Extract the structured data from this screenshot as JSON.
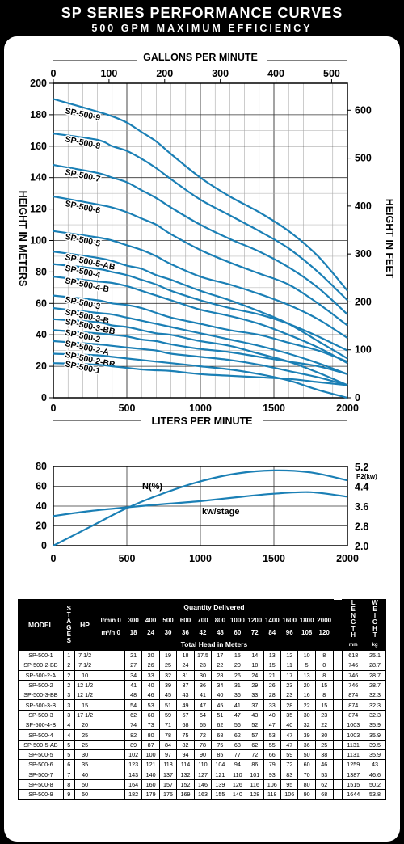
{
  "header": {
    "title": "SP SERIES PERFORMANCE CURVES",
    "subtitle": "500 GPM MAXIMUM EFFICIENCY"
  },
  "chart_data": [
    {
      "type": "line",
      "x_top_label": "GALLONS PER MINUTE",
      "x_top_ticks": [
        "0",
        "100",
        "200",
        "300",
        "400",
        "500"
      ],
      "x_bottom_label": "LITERS PER MINUTE",
      "x_ticks": [
        "0",
        "500",
        "1000",
        "1500",
        "2000"
      ],
      "xlim": [
        0,
        2000
      ],
      "y_left_label": "HEIGHT IN METERS",
      "y_left_ticks": [
        "0",
        "20",
        "40",
        "60",
        "80",
        "100",
        "120",
        "140",
        "160",
        "180",
        "200"
      ],
      "ylim": [
        0,
        200
      ],
      "y_right_label": "HEIGHT IN FEET",
      "y_right_ticks": [
        "0",
        "100",
        "200",
        "300",
        "400",
        "500",
        "600"
      ],
      "grid": true,
      "line_color": "#1a7fb5",
      "series": [
        {
          "name": "SP-500-9",
          "x": [
            0,
            300,
            400,
            500,
            600,
            700,
            800,
            1000,
            1200,
            1400,
            1600,
            1800,
            2000
          ],
          "y": [
            190,
            182,
            179,
            175,
            169,
            163,
            155,
            140,
            128,
            118,
            106,
            90,
            68
          ]
        },
        {
          "name": "SP-500-8",
          "x": [
            0,
            300,
            400,
            500,
            600,
            700,
            800,
            1000,
            1200,
            1400,
            1600,
            1800,
            2000
          ],
          "y": [
            168,
            164,
            160,
            157,
            152,
            146,
            139,
            126,
            116,
            106,
            95,
            80,
            62
          ]
        },
        {
          "name": "SP-500-7",
          "x": [
            0,
            300,
            400,
            500,
            600,
            700,
            800,
            1000,
            1200,
            1400,
            1600,
            1800,
            2000
          ],
          "y": [
            148,
            143,
            140,
            137,
            132,
            127,
            121,
            110,
            101,
            93,
            83,
            70,
            53
          ]
        },
        {
          "name": "SP-500-6",
          "x": [
            0,
            300,
            400,
            500,
            600,
            700,
            800,
            1000,
            1200,
            1400,
            1600,
            1800,
            2000
          ],
          "y": [
            128,
            123,
            121,
            118,
            114,
            110,
            104,
            94,
            86,
            79,
            72,
            60,
            46
          ]
        },
        {
          "name": "SP-500-5",
          "x": [
            0,
            300,
            400,
            500,
            600,
            700,
            800,
            1000,
            1200,
            1400,
            1600,
            1800,
            2000
          ],
          "y": [
            106,
            102,
            100,
            97,
            94,
            90,
            85,
            77,
            72,
            66,
            59,
            50,
            38
          ]
        },
        {
          "name": "SP-500-5-AB",
          "x": [
            0,
            300,
            400,
            500,
            600,
            700,
            800,
            1000,
            1200,
            1400,
            1600,
            1800,
            2000
          ],
          "y": [
            93,
            89,
            87,
            84,
            82,
            78,
            75,
            68,
            62,
            55,
            47,
            36,
            25
          ]
        },
        {
          "name": "SP-500-4",
          "x": [
            0,
            300,
            400,
            500,
            600,
            700,
            800,
            1000,
            1200,
            1400,
            1600,
            1800,
            2000
          ],
          "y": [
            85,
            82,
            80,
            78,
            75,
            72,
            68,
            62,
            57,
            53,
            47,
            39,
            30
          ]
        },
        {
          "name": "SP-500-4-B",
          "x": [
            0,
            300,
            400,
            500,
            600,
            700,
            800,
            1000,
            1200,
            1400,
            1600,
            1800,
            2000
          ],
          "y": [
            77,
            74,
            73,
            71,
            68,
            65,
            62,
            56,
            52,
            47,
            40,
            32,
            22
          ]
        },
        {
          "name": "SP-500-3",
          "x": [
            0,
            300,
            400,
            500,
            600,
            700,
            800,
            1000,
            1200,
            1400,
            1600,
            1800,
            2000
          ],
          "y": [
            65,
            62,
            60,
            59,
            57,
            54,
            51,
            47,
            43,
            40,
            35,
            30,
            23
          ]
        },
        {
          "name": "SP-500-3-B",
          "x": [
            0,
            300,
            400,
            500,
            600,
            700,
            800,
            1000,
            1200,
            1400,
            1600,
            1800,
            2000
          ],
          "y": [
            57,
            54,
            53,
            51,
            49,
            47,
            45,
            41,
            37,
            33,
            28,
            22,
            15
          ]
        },
        {
          "name": "SP-500-3-BB",
          "x": [
            0,
            300,
            400,
            500,
            600,
            700,
            800,
            1000,
            1200,
            1400,
            1600,
            1800,
            2000
          ],
          "y": [
            50,
            48,
            46,
            45,
            43,
            41,
            40,
            36,
            33,
            28,
            23,
            16,
            8
          ]
        },
        {
          "name": "SP-500-2",
          "x": [
            0,
            300,
            400,
            500,
            600,
            700,
            800,
            1000,
            1200,
            1400,
            1600,
            1800,
            2000
          ],
          "y": [
            43,
            41,
            40,
            39,
            37,
            36,
            34,
            31,
            29,
            26,
            23,
            20,
            15
          ]
        },
        {
          "name": "SP-500-2-A",
          "x": [
            0,
            300,
            400,
            500,
            600,
            700,
            800,
            1000,
            1200,
            1400,
            1600,
            1800,
            2000
          ],
          "y": [
            36,
            34,
            33,
            32,
            31,
            30,
            28,
            26,
            24,
            21,
            17,
            13,
            8
          ]
        },
        {
          "name": "SP-500-2-BB",
          "x": [
            0,
            300,
            400,
            500,
            600,
            700,
            800,
            1000,
            1200,
            1400,
            1600,
            1800,
            2000
          ],
          "y": [
            28,
            27,
            26,
            25,
            24,
            23,
            22,
            20,
            18,
            15,
            11,
            5,
            0
          ]
        },
        {
          "name": "SP-500-1",
          "x": [
            0,
            300,
            400,
            500,
            600,
            700,
            800,
            1000,
            1200,
            1400,
            1600,
            1800,
            2000
          ],
          "y": [
            22,
            21,
            20,
            19,
            18,
            17.5,
            17,
            15,
            14,
            13,
            12,
            10,
            8
          ]
        }
      ]
    },
    {
      "type": "line",
      "x_ticks": [
        "0",
        "500",
        "1000",
        "1500",
        "2000"
      ],
      "xlim": [
        0,
        2000
      ],
      "y_left_ticks": [
        "0",
        "20",
        "40",
        "60",
        "80"
      ],
      "ylim": [
        0,
        80
      ],
      "y_right_unit": "P2(kw)",
      "y_right_ticks": [
        "2.0",
        "2.8",
        "3.6",
        "4.4",
        "5.2"
      ],
      "y_right_lim": [
        2.0,
        5.2
      ],
      "grid": true,
      "series": [
        {
          "name": "N(%)",
          "axis": "left",
          "x": [
            0,
            250,
            500,
            750,
            1000,
            1250,
            1500,
            1750,
            2000
          ],
          "y": [
            0,
            19,
            38,
            53,
            65,
            73,
            76,
            74,
            66
          ]
        },
        {
          "name": "kw/stage",
          "axis": "right",
          "x": [
            0,
            250,
            500,
            750,
            1000,
            1250,
            1500,
            1750,
            2000
          ],
          "y": [
            3.2,
            3.4,
            3.55,
            3.68,
            3.8,
            3.96,
            4.1,
            4.16,
            3.98
          ]
        }
      ]
    }
  ],
  "table": {
    "headers": {
      "model": "MODEL",
      "stages": [
        "S",
        "T",
        "A",
        "G",
        "E",
        "S"
      ],
      "hp": "HP",
      "quantity": "Quantity Delivered",
      "lmin_unit": "l/min",
      "lmin_values": [
        "0",
        "300",
        "400",
        "500",
        "600",
        "700",
        "800",
        "1000",
        "1200",
        "1400",
        "1600",
        "1800",
        "2000"
      ],
      "m3h_unit": "m³/h",
      "m3h_values": [
        "0",
        "18",
        "24",
        "30",
        "36",
        "42",
        "48",
        "60",
        "72",
        "84",
        "96",
        "108",
        "120"
      ],
      "head": "Total Head in Meters",
      "length": [
        "L",
        "E",
        "N",
        "G",
        "T",
        "H"
      ],
      "length_unit": "mm",
      "weight": [
        "W",
        "E",
        "I",
        "G",
        "H",
        "T"
      ],
      "weight_unit": "kg"
    },
    "rows": [
      {
        "model": "SP-500-1",
        "stages": "1",
        "hp": "7 1/2",
        "heads": [
          "21",
          "20",
          "19",
          "18",
          "17.5",
          "17",
          "15",
          "14",
          "13",
          "12",
          "10",
          "8"
        ],
        "length": "618",
        "weight": "25.1"
      },
      {
        "model": "SP-500-2-BB",
        "stages": "2",
        "hp": "7 1/2",
        "heads": [
          "27",
          "26",
          "25",
          "24",
          "23",
          "22",
          "20",
          "18",
          "15",
          "11",
          "5",
          "0"
        ],
        "length": "746",
        "weight": "28.7"
      },
      {
        "model": "SP-500-2-A",
        "stages": "2",
        "hp": "10",
        "heads": [
          "34",
          "33",
          "32",
          "31",
          "30",
          "28",
          "26",
          "24",
          "21",
          "17",
          "13",
          "8"
        ],
        "length": "746",
        "weight": "28.7"
      },
      {
        "model": "SP-500-2",
        "stages": "2",
        "hp": "12 1/2",
        "heads": [
          "41",
          "40",
          "39",
          "37",
          "36",
          "34",
          "31",
          "29",
          "26",
          "23",
          "20",
          "15"
        ],
        "length": "746",
        "weight": "28.7"
      },
      {
        "model": "SP-500-3-BB",
        "stages": "3",
        "hp": "12 1/2",
        "heads": [
          "48",
          "46",
          "45",
          "43",
          "41",
          "40",
          "36",
          "33",
          "28",
          "23",
          "16",
          "8"
        ],
        "length": "874",
        "weight": "32.3"
      },
      {
        "model": "SP-500-3-B",
        "stages": "3",
        "hp": "15",
        "heads": [
          "54",
          "53",
          "51",
          "49",
          "47",
          "45",
          "41",
          "37",
          "33",
          "28",
          "22",
          "15"
        ],
        "length": "874",
        "weight": "32.3"
      },
      {
        "model": "SP-500-3",
        "stages": "3",
        "hp": "17 1/2",
        "heads": [
          "62",
          "60",
          "59",
          "57",
          "54",
          "51",
          "47",
          "43",
          "40",
          "35",
          "30",
          "23"
        ],
        "length": "874",
        "weight": "32.3"
      },
      {
        "model": "SP-500-4-B",
        "stages": "4",
        "hp": "20",
        "heads": [
          "74",
          "73",
          "71",
          "68",
          "65",
          "62",
          "56",
          "52",
          "47",
          "40",
          "32",
          "22"
        ],
        "length": "1003",
        "weight": "35.9"
      },
      {
        "model": "SP-500-4",
        "stages": "4",
        "hp": "25",
        "heads": [
          "82",
          "80",
          "78",
          "75",
          "72",
          "68",
          "62",
          "57",
          "53",
          "47",
          "39",
          "30"
        ],
        "length": "1003",
        "weight": "35.9"
      },
      {
        "model": "SP-500-5-AB",
        "stages": "5",
        "hp": "25",
        "heads": [
          "89",
          "87",
          "84",
          "82",
          "78",
          "75",
          "68",
          "62",
          "55",
          "47",
          "36",
          "25"
        ],
        "length": "1131",
        "weight": "39.5"
      },
      {
        "model": "SP-500-5",
        "stages": "5",
        "hp": "30",
        "heads": [
          "102",
          "100",
          "97",
          "94",
          "90",
          "85",
          "77",
          "72",
          "66",
          "59",
          "50",
          "38"
        ],
        "length": "1131",
        "weight": "35.9"
      },
      {
        "model": "SP-500-6",
        "stages": "6",
        "hp": "35",
        "heads": [
          "123",
          "121",
          "118",
          "114",
          "110",
          "104",
          "94",
          "86",
          "79",
          "72",
          "60",
          "46"
        ],
        "length": "1259",
        "weight": "43"
      },
      {
        "model": "SP-500-7",
        "stages": "7",
        "hp": "40",
        "heads": [
          "143",
          "140",
          "137",
          "132",
          "127",
          "121",
          "110",
          "101",
          "93",
          "83",
          "70",
          "53"
        ],
        "length": "1387",
        "weight": "46.6"
      },
      {
        "model": "SP-500-8",
        "stages": "8",
        "hp": "50",
        "heads": [
          "164",
          "160",
          "157",
          "152",
          "146",
          "139",
          "126",
          "116",
          "106",
          "95",
          "80",
          "62"
        ],
        "length": "1515",
        "weight": "50.2"
      },
      {
        "model": "SP-500-9",
        "stages": "9",
        "hp": "50",
        "heads": [
          "182",
          "179",
          "175",
          "169",
          "163",
          "155",
          "140",
          "128",
          "118",
          "106",
          "90",
          "68"
        ],
        "length": "1644",
        "weight": "53.8"
      }
    ]
  }
}
